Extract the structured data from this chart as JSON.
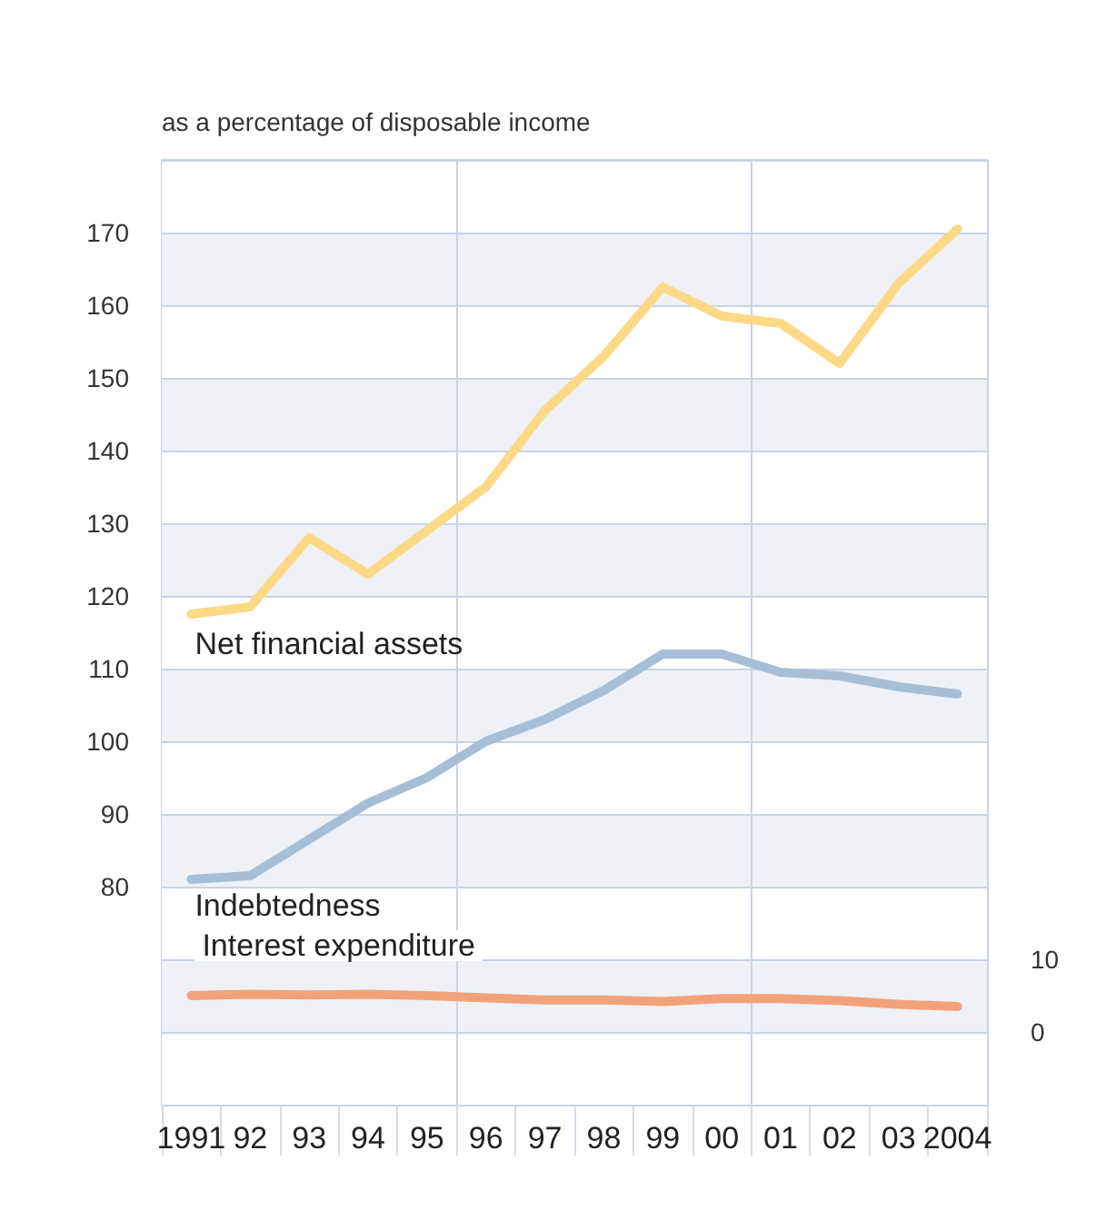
{
  "chart_data": {
    "type": "line",
    "ylabel": "as a percentage of disposable income",
    "categories": [
      "1991",
      "92",
      "93",
      "94",
      "95",
      "96",
      "97",
      "98",
      "99",
      "00",
      "01",
      "02",
      "03",
      "2004"
    ],
    "series": [
      {
        "name": "Net financial assets",
        "color": "#fcd987",
        "values": [
          117.5,
          118.5,
          128,
          123,
          129,
          135,
          145.5,
          153,
          162.5,
          158.5,
          157.5,
          152,
          163,
          170.5
        ]
      },
      {
        "name": "Indebtedness",
        "color": "#a7bfd6",
        "values": [
          81,
          81.5,
          86.5,
          91.5,
          95,
          100,
          103,
          107,
          112,
          112,
          109.5,
          109,
          107.5,
          106.5
        ]
      },
      {
        "name": "Interest expenditure",
        "color": "#f2a27a",
        "axis": "y2",
        "values": [
          5.0,
          5.2,
          5.1,
          5.2,
          5.0,
          4.7,
          4.4,
          4.4,
          4.2,
          4.6,
          4.6,
          4.3,
          3.8,
          3.5
        ]
      }
    ],
    "ylim": [
      50,
      180
    ],
    "yticks": [
      {
        "value": 60,
        "label": null
      },
      {
        "value": 70,
        "label": null
      },
      80,
      90,
      100,
      110,
      120,
      130,
      140,
      150,
      160,
      170
    ],
    "y2lim": [
      -10,
      120
    ],
    "y2ticks": [
      0,
      10
    ],
    "grid": true,
    "legend": false,
    "marker": "none",
    "line_style": "solid"
  }
}
